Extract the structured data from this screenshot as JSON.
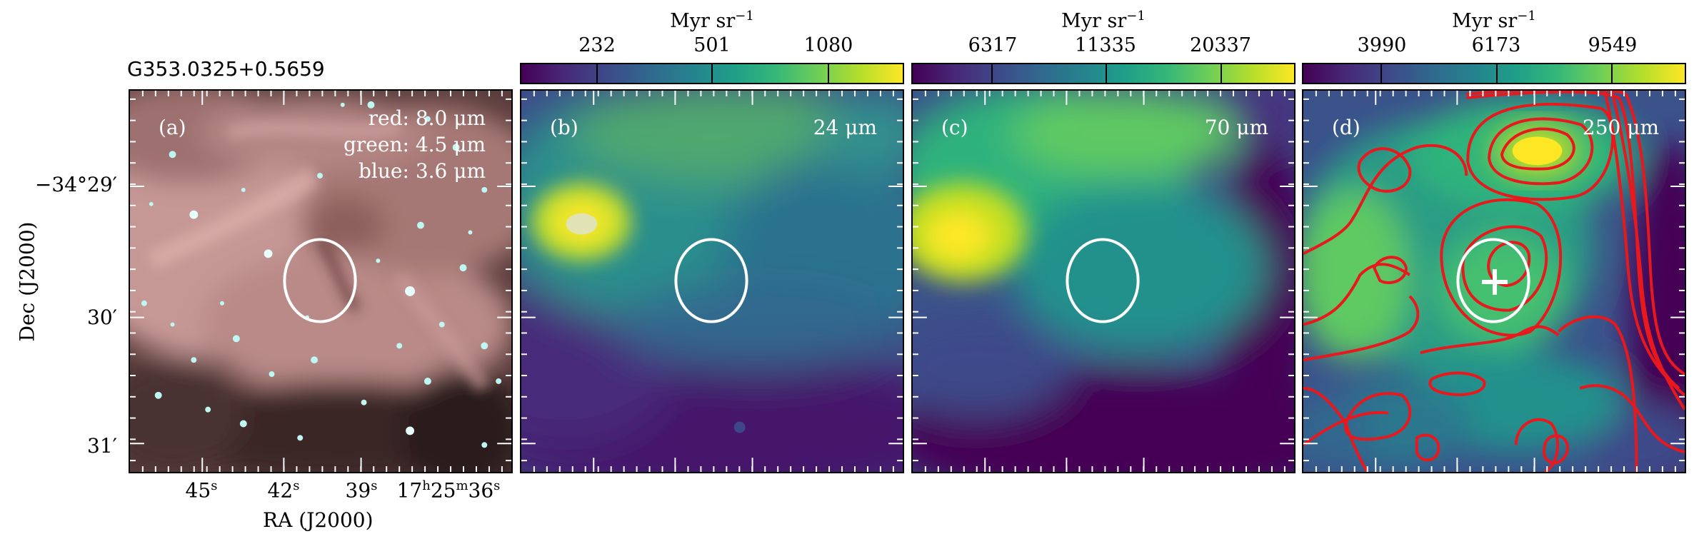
{
  "source_title": "G353.0325+0.5659",
  "panels": [
    {
      "label": "(a)",
      "rgb": {
        "red": "red: 8.0 μm",
        "green": "green: 4.5 μm",
        "blue": "blue: 3.6 μm"
      }
    },
    {
      "label": "(b)",
      "wavelength": "24 μm",
      "colorbar": {
        "unit": "Myr sr",
        "unit_exp": "−1",
        "ticks": [
          "232",
          "501",
          "1080"
        ]
      }
    },
    {
      "label": "(c)",
      "wavelength": "70 μm",
      "colorbar": {
        "unit": "Myr sr",
        "unit_exp": "−1",
        "ticks": [
          "6317",
          "11335",
          "20337"
        ]
      }
    },
    {
      "label": "(d)",
      "wavelength": "250 μm",
      "colorbar": {
        "unit": "Myr sr",
        "unit_exp": "−1",
        "ticks": [
          "3990",
          "6173",
          "9549"
        ]
      }
    }
  ],
  "axes": {
    "ylabel": "Dec (J2000)",
    "xlabel": "RA (J2000)",
    "yticks": {
      "t1": "−34°29′",
      "t2": "30′",
      "t3": "31′"
    },
    "xticks": [
      {
        "v": "45",
        "u": "s"
      },
      {
        "v": "42",
        "u": "s"
      },
      {
        "v": "39",
        "u": "s"
      }
    ],
    "xtick_last": {
      "h": "17",
      "m": "25",
      "s": "36"
    }
  },
  "colors": {
    "contour": "#e8181c",
    "ellipse": "#ffffff",
    "viridis_low": "#440154",
    "viridis_high": "#fde725"
  }
}
